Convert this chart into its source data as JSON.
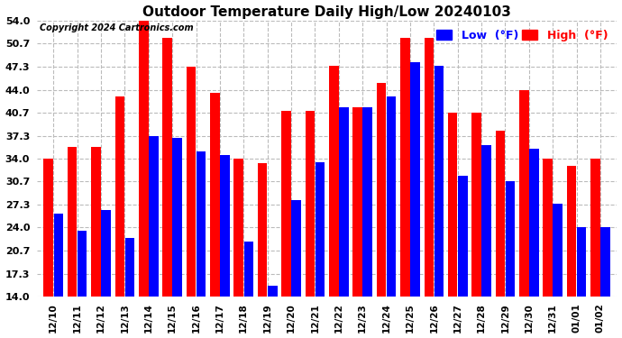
{
  "title": "Outdoor Temperature Daily High/Low 20240103",
  "copyright": "Copyright 2024 Cartronics.com",
  "legend_low": "Low  (°F)",
  "legend_high": "High  (°F)",
  "background_color": "#ffffff",
  "bar_color_high": "#ff0000",
  "bar_color_low": "#0000ff",
  "ylim_min": 14.0,
  "ylim_max": 54.0,
  "yticks": [
    14.0,
    17.3,
    20.7,
    24.0,
    27.3,
    30.7,
    34.0,
    37.3,
    40.7,
    44.0,
    47.3,
    50.7,
    54.0
  ],
  "dates": [
    "12/10",
    "12/11",
    "12/12",
    "12/13",
    "12/14",
    "12/15",
    "12/16",
    "12/17",
    "12/18",
    "12/19",
    "12/20",
    "12/21",
    "12/22",
    "12/23",
    "12/24",
    "12/25",
    "12/26",
    "12/27",
    "12/28",
    "12/29",
    "12/30",
    "12/31",
    "01/01",
    "01/02"
  ],
  "highs": [
    34.0,
    35.7,
    35.7,
    43.0,
    54.0,
    51.5,
    47.3,
    43.5,
    34.0,
    33.3,
    41.0,
    41.0,
    47.5,
    41.5,
    45.0,
    51.5,
    51.5,
    40.7,
    40.7,
    38.0,
    44.0,
    34.0,
    33.0,
    34.0
  ],
  "lows": [
    26.0,
    23.5,
    26.5,
    22.5,
    37.3,
    37.0,
    35.0,
    34.5,
    22.0,
    15.5,
    28.0,
    33.5,
    41.5,
    41.5,
    43.0,
    48.0,
    47.5,
    31.5,
    36.0,
    30.7,
    35.5,
    27.5,
    24.0,
    24.0
  ]
}
